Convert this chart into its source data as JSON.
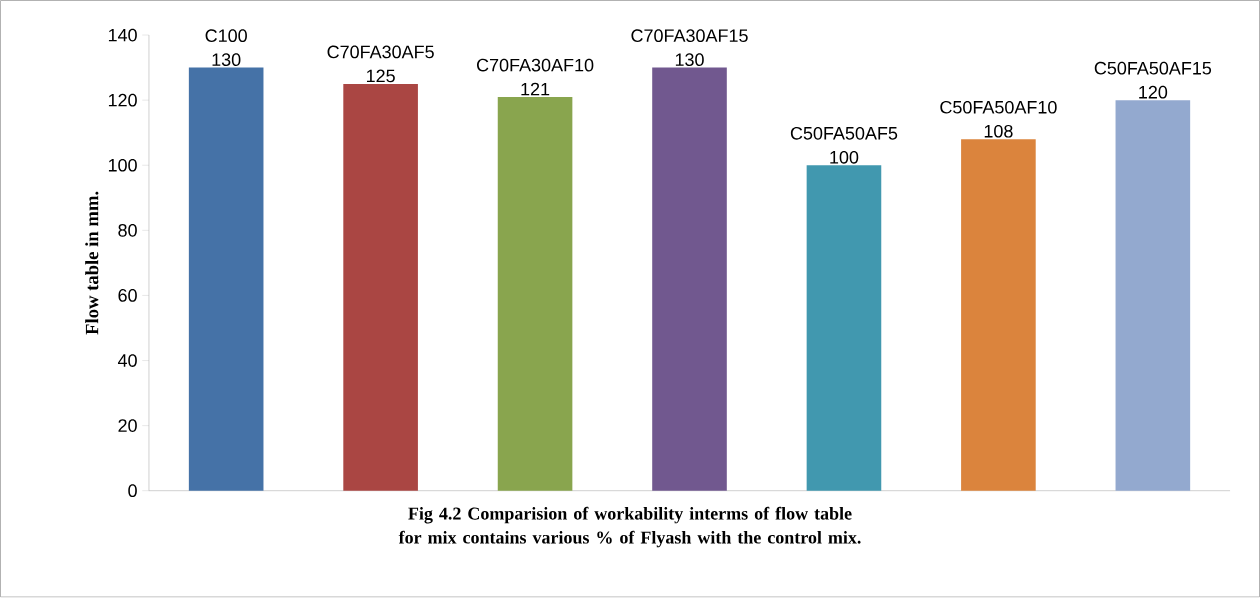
{
  "chart_data": {
    "type": "bar",
    "ylabel": "Flow table in mm.",
    "annotations": [
      "Fig 4.2 Comparision of workability interms of flow table for mix contains various % of Flyash with the control mix."
    ],
    "categories": [
      "C100",
      "C70FA30AF5",
      "C70FA30AF10",
      "C70FA30AF15",
      "C50FA50AF5",
      "C50FA50AF10",
      "C50FA50AF15"
    ],
    "values": [
      130,
      125,
      121,
      130,
      100,
      108,
      120
    ],
    "colors": [
      "#4572a7",
      "#aa4643",
      "#89a54e",
      "#71588f",
      "#4198af",
      "#db843d",
      "#93a9cf"
    ],
    "data_labels": true,
    "ylim": [
      0,
      140
    ],
    "yticks": [
      0,
      20,
      40,
      60,
      80,
      100,
      120,
      140
    ],
    "grid": false
  }
}
